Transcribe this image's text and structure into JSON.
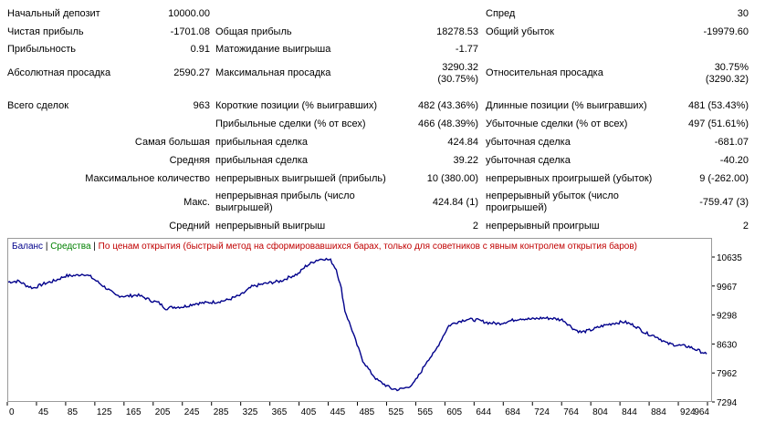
{
  "report": {
    "initial_deposit": {
      "label": "Начальный депозит",
      "value": "10000.00"
    },
    "spread": {
      "label": "Спред",
      "value": "30"
    },
    "net_profit": {
      "label": "Чистая прибыль",
      "value": "-1701.08"
    },
    "gross_profit": {
      "label": "Общая прибыль",
      "value": "18278.53"
    },
    "gross_loss": {
      "label": "Общий убыток",
      "value": "-19979.60"
    },
    "profit_factor": {
      "label": "Прибыльность",
      "value": "0.91"
    },
    "expected_payoff": {
      "label": "Матожидание выигрыша",
      "value": "-1.77"
    },
    "abs_drawdown": {
      "label": "Абсолютная просадка",
      "value": "2590.27"
    },
    "max_drawdown": {
      "label": "Максимальная просадка",
      "value1": "3290.32",
      "value2": "(30.75%)"
    },
    "rel_drawdown": {
      "label": "Относительная просадка",
      "value1": "30.75%",
      "value2": "(3290.32)"
    },
    "total_trades": {
      "label": "Всего сделок",
      "value": "963"
    },
    "short_positions": {
      "label": "Короткие позиции (% выигравших)",
      "value": "482 (43.36%)"
    },
    "long_positions": {
      "label": "Длинные позиции (% выигравших)",
      "value": "481 (53.43%)"
    },
    "profit_trades": {
      "label": "Прибыльные сделки (% от всех)",
      "value": "466 (48.39%)"
    },
    "loss_trades": {
      "label": "Убыточные сделки (% от всех)",
      "value": "497 (51.61%)"
    },
    "largest": {
      "label": "Самая большая",
      "profit_label": "прибыльная сделка",
      "profit_value": "424.84",
      "loss_label": "убыточная сделка",
      "loss_value": "-681.07"
    },
    "average": {
      "label": "Средняя",
      "profit_label": "прибыльная сделка",
      "profit_value": "39.22",
      "loss_label": "убыточная сделка",
      "loss_value": "-40.20"
    },
    "max_consecutive": {
      "label": "Максимальное количество",
      "profit_label": "непрерывных выигрышей (прибыль)",
      "profit_value": "10 (380.00)",
      "loss_label": "непрерывных проигрышей (убыток)",
      "loss_value": "9 (-262.00)"
    },
    "max_consec_amount": {
      "label": "Макс.",
      "profit_label": "непрерывная прибыль (число выигрышей)",
      "profit_value": "424.84 (1)",
      "loss_label": "непрерывный убыток (число проигрышей)",
      "loss_value": "-759.47 (3)"
    },
    "avg_consecutive": {
      "label": "Средний",
      "profit_label": "непрерывный выигрыш",
      "profit_value": "2",
      "loss_label": "непрерывный проигрыш",
      "loss_value": "2"
    }
  },
  "legend": {
    "balance": "Баланс",
    "sep1": " | ",
    "equity": "Средства",
    "sep2": " | ",
    "note": "По ценам открытия (быстрый метод на сформировавшихся барах, только для советников с явным контролем открытия баров)"
  },
  "colors": {
    "balance_line": "#00008b",
    "equity_label": "#008000",
    "note_label": "#c00000",
    "frame": "#9a9a9a"
  },
  "chart_data": {
    "type": "line",
    "x_ticks": [
      "0",
      "45",
      "85",
      "125",
      "165",
      "205",
      "245",
      "285",
      "325",
      "365",
      "405",
      "445",
      "485",
      "525",
      "565",
      "605",
      "644",
      "684",
      "724",
      "764",
      "804",
      "844",
      "884",
      "924",
      "964"
    ],
    "y_ticks": [
      "10635",
      "9967",
      "9298",
      "8630",
      "7962",
      "7294"
    ],
    "ylim": [
      7294,
      10635
    ],
    "xlim": [
      0,
      980
    ],
    "series": [
      {
        "name": "Баланс",
        "x": [
          0,
          15,
          25,
          35,
          50,
          65,
          80,
          95,
          105,
          115,
          125,
          140,
          150,
          165,
          180,
          190,
          200,
          210,
          220,
          230,
          245,
          260,
          275,
          290,
          305,
          325,
          340,
          355,
          365,
          380,
          395,
          405,
          415,
          430,
          440,
          450,
          458,
          465,
          470,
          480,
          485,
          495,
          505,
          515,
          525,
          535,
          545,
          555,
          565,
          575,
          585,
          595,
          605,
          615,
          625,
          640,
          655,
          670,
          685,
          700,
          715,
          730,
          745,
          760,
          775,
          790,
          800,
          815,
          830,
          845,
          860,
          875,
          890,
          905,
          920,
          935,
          950,
          965,
          975
        ],
        "y": [
          10060,
          10080,
          9980,
          9920,
          10020,
          10090,
          10200,
          10210,
          10250,
          10180,
          10060,
          9880,
          9750,
          9730,
          9760,
          9700,
          9630,
          9580,
          9450,
          9480,
          9490,
          9560,
          9580,
          9600,
          9640,
          9760,
          9950,
          10010,
          10040,
          10080,
          10190,
          10250,
          10420,
          10560,
          10600,
          10560,
          10350,
          9900,
          9400,
          8950,
          8700,
          8250,
          8000,
          7800,
          7700,
          7600,
          7580,
          7620,
          7700,
          7950,
          8250,
          8430,
          8750,
          9050,
          9130,
          9200,
          9180,
          9120,
          9100,
          9160,
          9220,
          9200,
          9230,
          9220,
          9180,
          8970,
          8900,
          8960,
          9050,
          9110,
          9140,
          9050,
          8880,
          8800,
          8640,
          8600,
          8570,
          8470,
          8400
        ]
      }
    ]
  }
}
